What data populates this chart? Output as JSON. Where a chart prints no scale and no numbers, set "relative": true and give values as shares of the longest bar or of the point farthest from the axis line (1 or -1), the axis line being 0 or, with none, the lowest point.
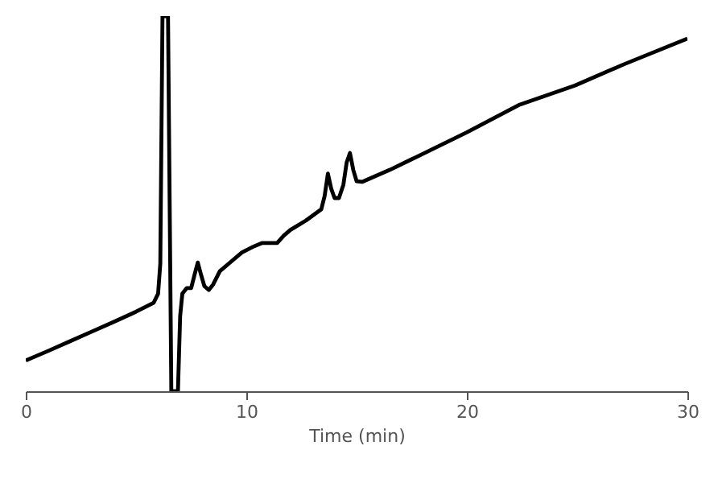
{
  "chart_data": {
    "type": "line",
    "xlabel": "Time (min)",
    "relative": true,
    "xlim": [
      0,
      30
    ],
    "xticks": [
      0,
      10,
      20,
      30
    ],
    "grid": false,
    "marker": "none",
    "line_style": "solid",
    "series": [
      {
        "color": "#000000",
        "x": [
          0,
          1,
          2,
          3,
          4,
          5,
          5.8,
          6.0,
          6.1,
          6.2,
          6.45,
          6.6,
          6.9,
          7.0,
          7.1,
          7.3,
          7.5,
          7.65,
          7.8,
          7.95,
          8.1,
          8.3,
          8.5,
          8.8,
          9.3,
          9.8,
          10.3,
          10.7,
          11.4,
          11.7,
          12.0,
          12.7,
          13.4,
          13.55,
          13.7,
          13.85,
          14.0,
          14.2,
          14.4,
          14.55,
          14.7,
          14.85,
          15.0,
          15.25,
          16.5,
          17.8,
          20,
          22.4,
          24.9,
          27.1,
          30
        ],
        "values": [
          0.082,
          0.107,
          0.133,
          0.159,
          0.185,
          0.212,
          0.236,
          0.26,
          0.34,
          1.0,
          1.0,
          0,
          0,
          0.2,
          0.26,
          0.275,
          0.275,
          0.31,
          0.343,
          0.31,
          0.28,
          0.27,
          0.285,
          0.32,
          0.345,
          0.37,
          0.385,
          0.395,
          0.395,
          0.415,
          0.43,
          0.455,
          0.485,
          0.52,
          0.58,
          0.54,
          0.515,
          0.515,
          0.55,
          0.61,
          0.635,
          0.59,
          0.56,
          0.558,
          0.59,
          0.627,
          0.69,
          0.764,
          0.815,
          0.871,
          0.94
        ]
      }
    ]
  }
}
